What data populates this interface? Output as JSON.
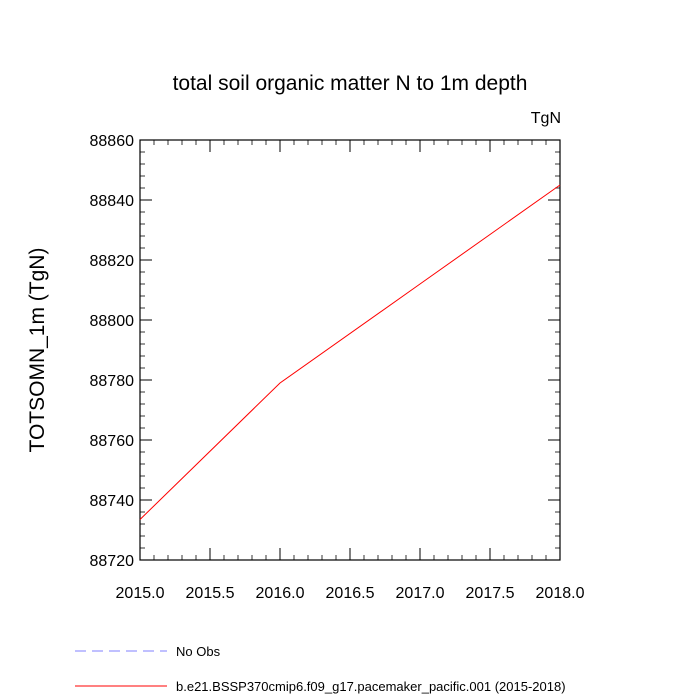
{
  "chart_data": {
    "type": "line",
    "title": "total soil organic matter N to 1m depth",
    "units_label": "TgN",
    "ylabel": "TOTSOMN_1m  (TgN)",
    "xlabel": "",
    "xlim": [
      2015.0,
      2018.0
    ],
    "ylim": [
      88720,
      88860
    ],
    "x_ticks": [
      "2015.0",
      "2015.5",
      "2016.0",
      "2016.5",
      "2017.0",
      "2017.5",
      "2018.0"
    ],
    "y_ticks": [
      "88720",
      "88740",
      "88760",
      "88780",
      "88800",
      "88820",
      "88840",
      "88860"
    ],
    "grid": false,
    "legend_position": "bottom-left",
    "series": [
      {
        "name": "b.e21.BSSP370cmip6.f09_g17.pacemaker_pacific.001 (2015-2018)",
        "color": "#ff0000",
        "dash": "solid",
        "x": [
          2015.0,
          2016.0,
          2017.0,
          2018.0
        ],
        "values": [
          88733.5,
          88779,
          88812,
          88845
        ]
      }
    ],
    "legend": [
      {
        "label": "No Obs",
        "color": "#8080ff",
        "dash": "dashed"
      },
      {
        "label": "b.e21.BSSP370cmip6.f09_g17.pacemaker_pacific.001 (2015-2018)",
        "color": "#ff0000",
        "dash": "solid"
      }
    ]
  }
}
